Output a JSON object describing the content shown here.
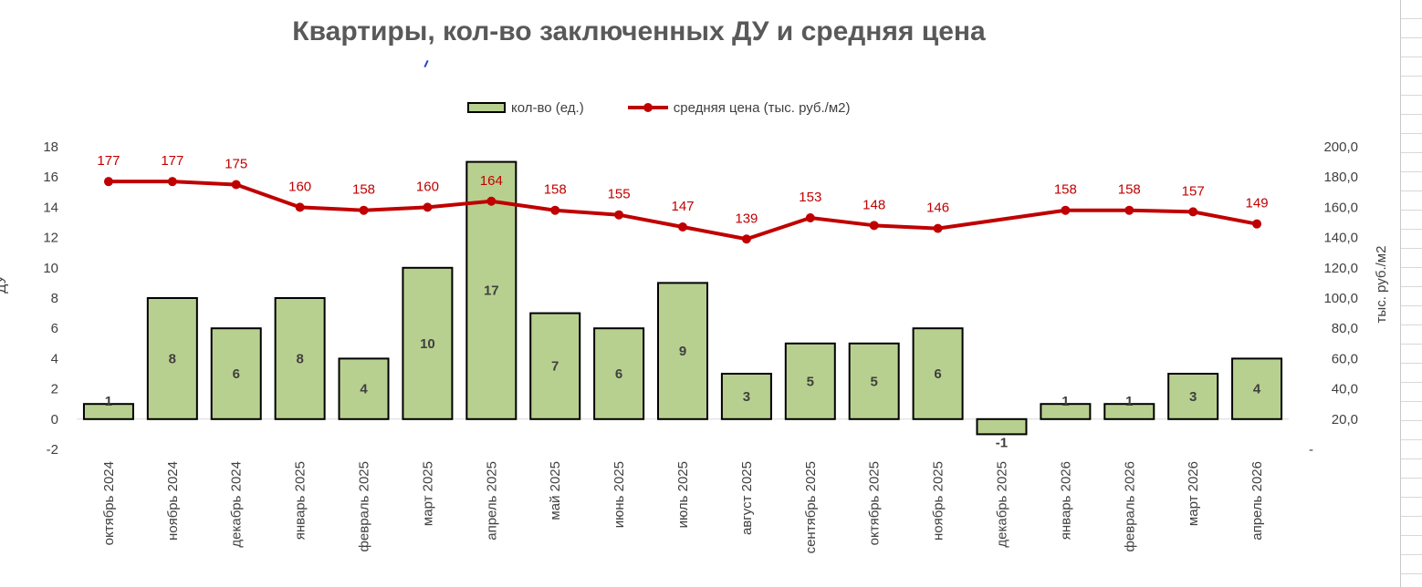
{
  "chart_data": {
    "type": "bar+line",
    "title": "Квартиры, кол-во заключенных ДУ и средняя цена",
    "categories": [
      "октябрь 2024",
      "ноябрь 2024",
      "декабрь 2024",
      "январь 2025",
      "февраль 2025",
      "март 2025",
      "апрель 2025",
      "май 2025",
      "июнь 2025",
      "июль 2025",
      "август 2025",
      "сентябрь 2025",
      "октябрь 2025",
      "ноябрь 2025",
      "декабрь 2025",
      "январь 2026",
      "февраль 2026",
      "март 2026",
      "апрель 2026"
    ],
    "series": [
      {
        "name": "кол-во (ед.)",
        "kind": "bar",
        "axis": "left",
        "color": "#b8d08f",
        "values": [
          1,
          8,
          6,
          8,
          4,
          10,
          17,
          7,
          6,
          9,
          3,
          5,
          5,
          6,
          -1,
          1,
          1,
          3,
          4
        ],
        "labels": [
          "1",
          "8",
          "6",
          "8",
          "4",
          "10",
          "17",
          "7",
          "6",
          "9",
          "3",
          "5",
          "5",
          "6",
          "-1",
          "1",
          "1",
          "3",
          "4"
        ]
      },
      {
        "name": "средняя цена (тыс. руб./м2)",
        "kind": "line",
        "axis": "right",
        "color": "#c00000",
        "values": [
          177,
          177,
          175,
          160,
          158,
          160,
          164,
          158,
          155,
          147,
          139,
          153,
          148,
          146,
          null,
          158,
          158,
          157,
          149
        ],
        "labels": [
          "177",
          "177",
          "175",
          "160",
          "158",
          "160",
          "164",
          "158",
          "155",
          "147",
          "139",
          "153",
          "148",
          "146",
          "",
          "158",
          "158",
          "157",
          "149"
        ]
      }
    ],
    "y_left": {
      "lim": [
        -2,
        18
      ],
      "ticks": [
        "-2",
        "0",
        "2",
        "4",
        "6",
        "8",
        "10",
        "12",
        "14",
        "16",
        "18"
      ],
      "label": "ДУ"
    },
    "y_right": {
      "lim": [
        0,
        200
      ],
      "ticks": [
        "-",
        "20,0",
        "40,0",
        "60,0",
        "80,0",
        "100,0",
        "120,0",
        "140,0",
        "160,0",
        "180,0",
        "200,0"
      ],
      "label": "тыс. руб./м2"
    },
    "grid": false,
    "legend": "top"
  }
}
